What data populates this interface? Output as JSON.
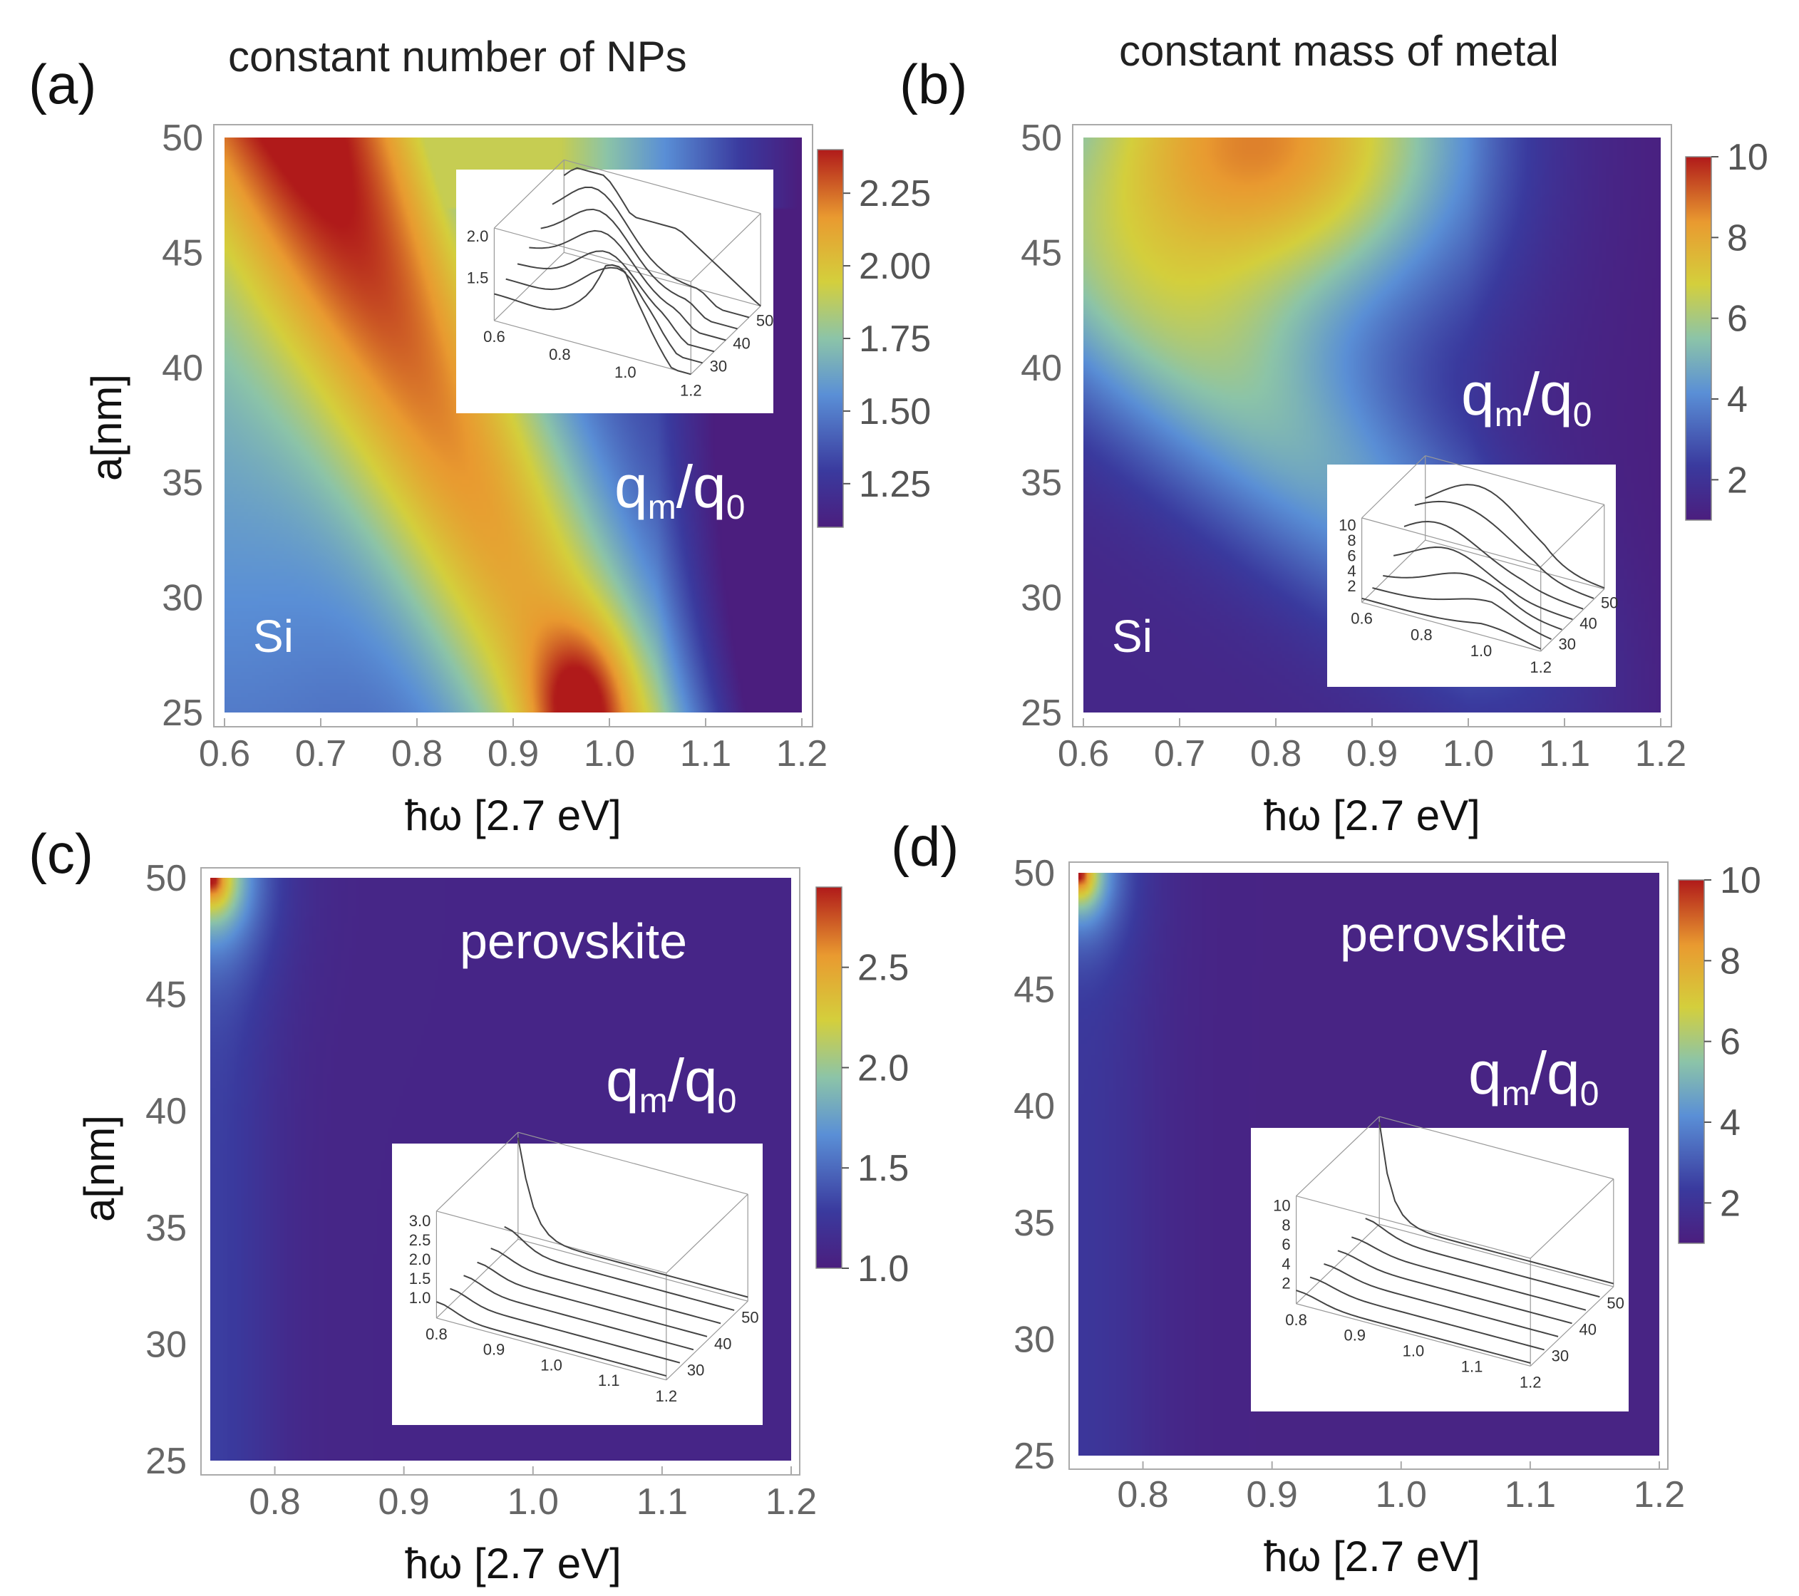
{
  "chart_data": [
    {
      "panel": "(a)",
      "type": "heatmap",
      "title": "constant number of NPs",
      "xlabel": "ħω [2.7 eV]",
      "ylabel": "a[nm]",
      "xlim": [
        0.6,
        1.2
      ],
      "ylim": [
        25,
        50
      ],
      "xticks": [
        "0.6",
        "0.7",
        "0.8",
        "0.9",
        "1.0",
        "1.1",
        "1.2"
      ],
      "yticks": [
        "25",
        "30",
        "35",
        "40",
        "45",
        "50"
      ],
      "colorbar": {
        "min": 1.1,
        "max": 2.4,
        "ticks": [
          "1.25",
          "1.50",
          "1.75",
          "2.00",
          "2.25"
        ]
      },
      "material": "Si",
      "quantity": {
        "base": "q",
        "sub1": "m",
        "sep": "/",
        "sub2": "0"
      },
      "peak": {
        "x": 0.97,
        "y": 25,
        "value": 2.38
      },
      "inset": {
        "type": "surface",
        "z_ticks": [
          "2.0",
          "1.5"
        ],
        "x_ticks": [
          "0.6",
          "0.8",
          "1.0",
          "1.2"
        ],
        "y_ticks": [
          "30",
          "40",
          "50"
        ]
      }
    },
    {
      "panel": "(b)",
      "type": "heatmap",
      "title": "constant mass of metal",
      "xlabel": "ħω [2.7 eV]",
      "ylabel": "",
      "xlim": [
        0.6,
        1.2
      ],
      "ylim": [
        25,
        50
      ],
      "xticks": [
        "0.6",
        "0.7",
        "0.8",
        "0.9",
        "1.0",
        "1.1",
        "1.2"
      ],
      "yticks": [
        "25",
        "30",
        "35",
        "40",
        "45",
        "50"
      ],
      "colorbar": {
        "min": 1,
        "max": 10,
        "ticks": [
          "2",
          "4",
          "6",
          "8",
          "10"
        ]
      },
      "material": "Si",
      "quantity": {
        "base": "q",
        "sub1": "m",
        "sep": "/",
        "sub2": "0"
      },
      "peak": {
        "x": 0.8,
        "y": 50,
        "value": 9
      },
      "inset": {
        "type": "surface",
        "z_ticks": [
          "10",
          "8",
          "6",
          "4",
          "2"
        ],
        "x_ticks": [
          "0.6",
          "0.8",
          "1.0",
          "1.2"
        ],
        "y_ticks": [
          "30",
          "40",
          "50"
        ]
      }
    },
    {
      "panel": "(c)",
      "type": "heatmap",
      "title": "",
      "xlabel": "ħω [2.7 eV]",
      "ylabel": "a[nm]",
      "xlim": [
        0.75,
        1.2
      ],
      "ylim": [
        25,
        50
      ],
      "xticks": [
        "0.8",
        "0.9",
        "1.0",
        "1.1",
        "1.2"
      ],
      "yticks": [
        "25",
        "30",
        "35",
        "40",
        "45",
        "50"
      ],
      "colorbar": {
        "min": 1.0,
        "max": 2.9,
        "ticks": [
          "1.0",
          "1.5",
          "2.0",
          "2.5"
        ]
      },
      "material": "perovskite",
      "quantity": {
        "base": "q",
        "sub1": "m",
        "sep": "/",
        "sub2": "0"
      },
      "peak": {
        "x": 0.75,
        "y": 50,
        "value": 2.9
      },
      "inset": {
        "type": "surface",
        "z_ticks": [
          "3.0",
          "2.5",
          "2.0",
          "1.5",
          "1.0"
        ],
        "x_ticks": [
          "0.8",
          "0.9",
          "1.0",
          "1.1",
          "1.2"
        ],
        "y_ticks": [
          "30",
          "40",
          "50"
        ]
      }
    },
    {
      "panel": "(d)",
      "type": "heatmap",
      "title": "",
      "xlabel": "ħω [2.7 eV]",
      "ylabel": "",
      "xlim": [
        0.75,
        1.2
      ],
      "ylim": [
        25,
        50
      ],
      "xticks": [
        "0.8",
        "0.9",
        "1.0",
        "1.1",
        "1.2"
      ],
      "yticks": [
        "25",
        "30",
        "35",
        "40",
        "45",
        "50"
      ],
      "colorbar": {
        "min": 1,
        "max": 10,
        "ticks": [
          "2",
          "4",
          "6",
          "8",
          "10"
        ]
      },
      "material": "perovskite",
      "quantity": {
        "base": "q",
        "sub1": "m",
        "sep": "/",
        "sub2": "0"
      },
      "peak": {
        "x": 0.75,
        "y": 50,
        "value": 10
      },
      "inset": {
        "type": "surface",
        "z_ticks": [
          "10",
          "8",
          "6",
          "4",
          "2"
        ],
        "x_ticks": [
          "0.8",
          "0.9",
          "1.0",
          "1.1",
          "1.2"
        ],
        "y_ticks": [
          "30",
          "40",
          "50"
        ]
      }
    }
  ]
}
